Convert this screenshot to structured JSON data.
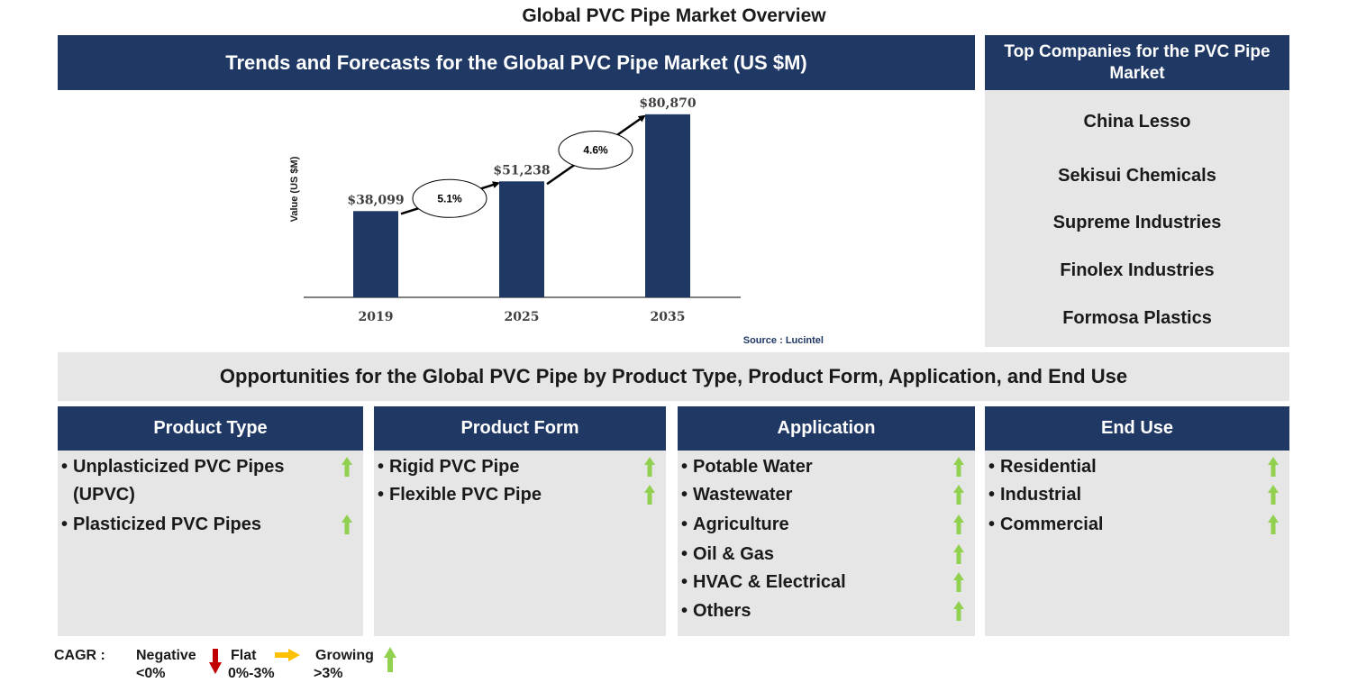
{
  "page_title": "Global PVC Pipe Market Overview",
  "chart_header": "Trends and Forecasts for the Global PVC Pipe Market (US $M)",
  "chart_data": {
    "type": "bar",
    "categories": [
      "2019",
      "2025",
      "2035"
    ],
    "values": [
      38099,
      51238,
      80870
    ],
    "data_labels": [
      "$38,099",
      "$51,238",
      "$80,870"
    ],
    "ylabel": "Value (US $M)",
    "xlabel": "",
    "ylim": [
      0,
      82000
    ],
    "grid": false,
    "bar_color": "#1f3864",
    "cagr_annotations": [
      {
        "from": "2019",
        "to": "2025",
        "label": "5.1%"
      },
      {
        "from": "2025",
        "to": "2035",
        "label": "4.6%"
      }
    ],
    "source": "Source : Lucintel"
  },
  "companies": {
    "header": "Top Companies for the PVC Pipe Market",
    "items": [
      "China Lesso",
      "Sekisui Chemicals",
      "Supreme Industries",
      "Finolex Industries",
      "Formosa Plastics"
    ]
  },
  "opportunities_banner": "Opportunities for the Global PVC Pipe by Product Type, Product Form, Application, and End Use",
  "segments": [
    {
      "title": "Product Type",
      "items": [
        {
          "label": "Unplasticized PVC Pipes",
          "label2": "(UPVC)",
          "trend": "growing"
        },
        {
          "label": "Plasticized PVC Pipes",
          "trend": "growing"
        }
      ]
    },
    {
      "title": "Product Form",
      "items": [
        {
          "label": "Rigid PVC Pipe",
          "trend": "growing"
        },
        {
          "label": "Flexible PVC Pipe",
          "trend": "growing"
        }
      ]
    },
    {
      "title": "Application",
      "items": [
        {
          "label": "Potable Water",
          "trend": "growing"
        },
        {
          "label": "Wastewater",
          "trend": "growing"
        },
        {
          "label": "Agriculture",
          "trend": "growing"
        },
        {
          "label": "Oil & Gas",
          "trend": "growing"
        },
        {
          "label": "HVAC & Electrical",
          "trend": "growing"
        },
        {
          "label": "Others",
          "trend": "growing"
        }
      ]
    },
    {
      "title": "End Use",
      "items": [
        {
          "label": "Residential",
          "trend": "growing"
        },
        {
          "label": "Industrial",
          "trend": "growing"
        },
        {
          "label": "Commercial",
          "trend": "growing"
        }
      ]
    }
  ],
  "legend": {
    "cagr_label": "CAGR :",
    "negative": {
      "label": "Negative",
      "range": "<0%",
      "color": "#c00000"
    },
    "flat": {
      "label": "Flat",
      "range": "0%-3%",
      "color": "#ffc000"
    },
    "growing": {
      "label": "Growing",
      "range": ">3%",
      "color": "#92d050"
    }
  }
}
